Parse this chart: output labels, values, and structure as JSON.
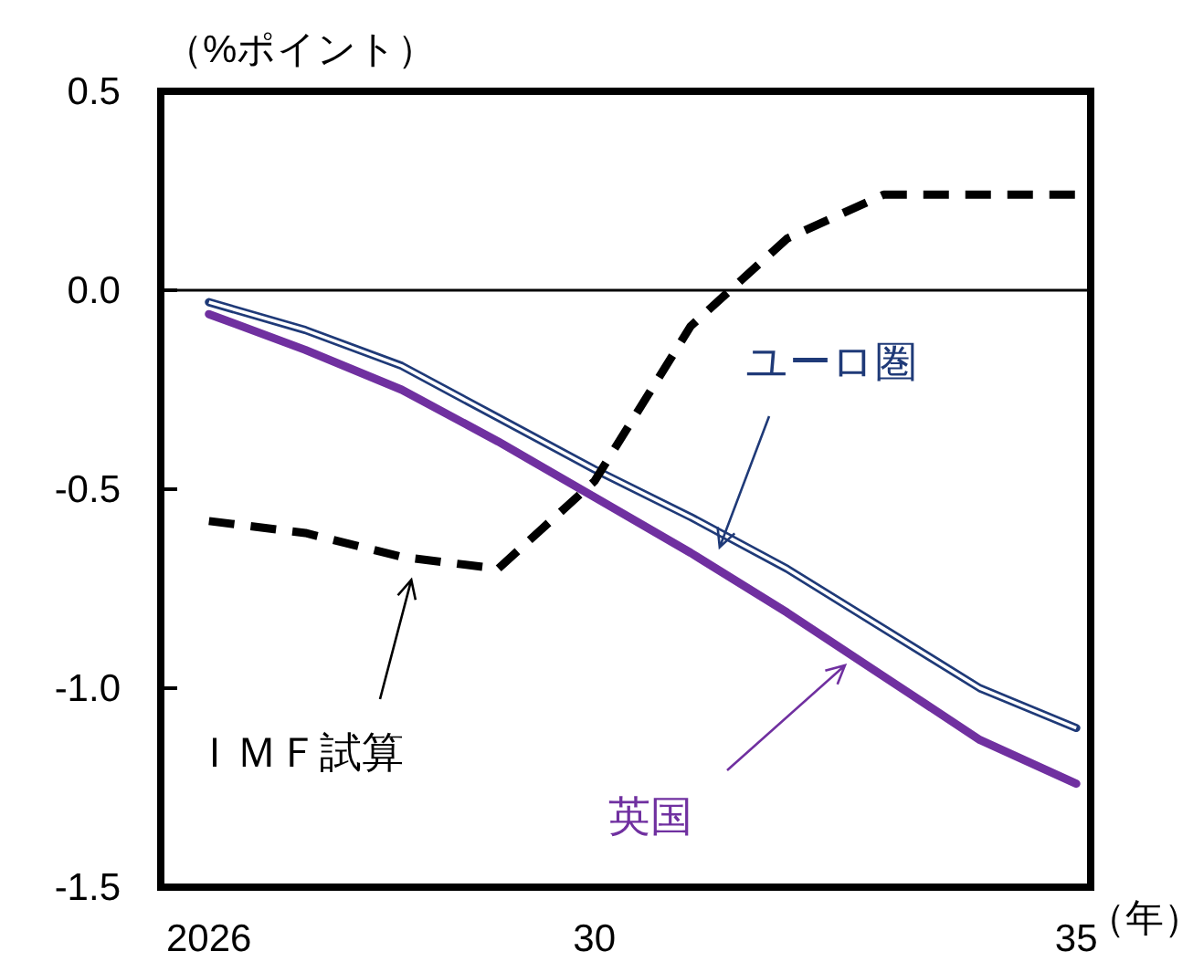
{
  "chart_data": {
    "type": "line",
    "ylabel": "（%ポイント）",
    "xlabel": "（年）",
    "x": [
      2026,
      2027,
      2028,
      2029,
      2030,
      2031,
      2032,
      2033,
      2034,
      2035
    ],
    "xlim": [
      2025.5,
      2035.15
    ],
    "xticks": [
      {
        "value": 2026,
        "label": "2026"
      },
      {
        "value": 2030,
        "label": "30"
      },
      {
        "value": 2035,
        "label": "35"
      }
    ],
    "ylim": [
      -1.5,
      0.5
    ],
    "yticks": [
      {
        "value": 0.5,
        "label": "0.5"
      },
      {
        "value": 0,
        "label": "0.0"
      },
      {
        "value": -0.5,
        "label": "-0.5"
      },
      {
        "value": -1,
        "label": "-1.0"
      },
      {
        "value": -1.5,
        "label": "-1.5"
      }
    ],
    "series": [
      {
        "name": "ユーロ圏",
        "color": "#1f3a78",
        "line_style": "solid",
        "values": [
          -0.03,
          -0.1,
          -0.19,
          -0.32,
          -0.45,
          -0.57,
          -0.7,
          -0.85,
          -1.0,
          -1.1
        ]
      },
      {
        "name": "英国",
        "color": "#7030a0",
        "line_style": "solid",
        "values": [
          -0.06,
          -0.15,
          -0.25,
          -0.38,
          -0.52,
          -0.66,
          -0.81,
          -0.97,
          -1.13,
          -1.24
        ]
      },
      {
        "name": "ＩＭＦ試算",
        "color": "#000000",
        "line_style": "dashed",
        "values": [
          -0.58,
          -0.61,
          -0.67,
          -0.7,
          -0.48,
          -0.09,
          0.13,
          0.24,
          0.24,
          0.24
        ]
      }
    ],
    "ref_lines": [
      {
        "axis": "y",
        "value": 0,
        "color": "#000000"
      }
    ],
    "grid": false,
    "marker": "none"
  }
}
